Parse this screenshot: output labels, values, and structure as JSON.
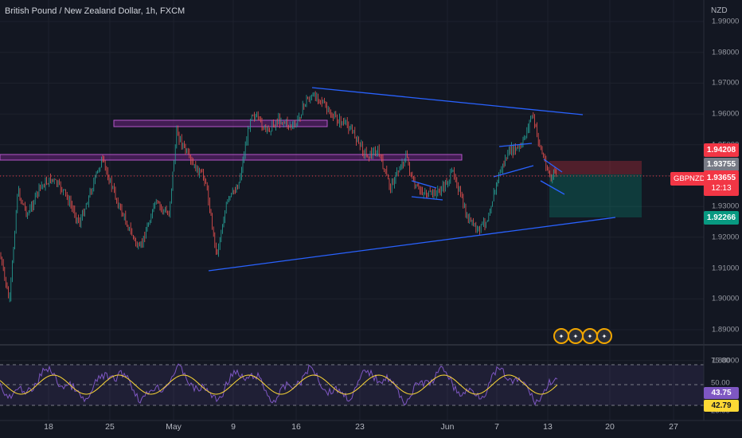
{
  "header": {
    "title": "British Pound / New Zealand Dollar, 1h, FXCM",
    "currency": "NZD"
  },
  "price_axis": {
    "ticks": [
      "1.99000",
      "1.98000",
      "1.97000",
      "1.96000",
      "1.95000",
      "1.94000",
      "1.93000",
      "1.92000",
      "1.91000",
      "1.90000",
      "1.89000",
      "1.88000"
    ]
  },
  "tags": {
    "stop": "1.94208",
    "entry": "1.93755",
    "current": "1.93655",
    "countdown": "12:13",
    "target": "1.92266",
    "symbol": "GBPNZD"
  },
  "rsi": {
    "ticks": [
      "75.00",
      "50.00",
      "25.00"
    ],
    "value": "43.75",
    "ma": "42.79"
  },
  "time_axis": {
    "labels": [
      "18",
      "25",
      "May",
      "9",
      "16",
      "23",
      "Jun",
      "7",
      "13",
      "20",
      "27"
    ]
  },
  "events": [
    "flag-icon-gb",
    "flag-icon-nz",
    "flag-icon-gb",
    "flag-icon-nz"
  ],
  "colors": {
    "background": "#131722",
    "up": "#26a69a",
    "down": "#ef5350",
    "trendline": "#2962ff",
    "zone": "#9c27b0",
    "rsi_line": "#7e57c2",
    "rsi_ma": "#fdd835"
  }
}
